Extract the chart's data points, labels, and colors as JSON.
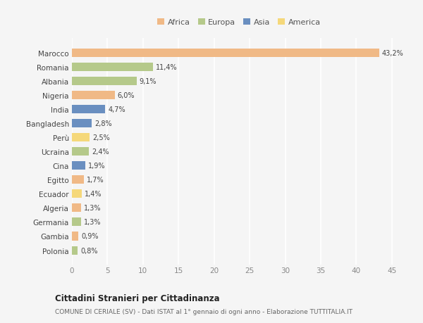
{
  "countries": [
    "Marocco",
    "Romania",
    "Albania",
    "Nigeria",
    "India",
    "Bangladesh",
    "Perù",
    "Ucraina",
    "Cina",
    "Egitto",
    "Ecuador",
    "Algeria",
    "Germania",
    "Gambia",
    "Polonia"
  ],
  "values": [
    43.2,
    11.4,
    9.1,
    6.0,
    4.7,
    2.8,
    2.5,
    2.4,
    1.9,
    1.7,
    1.4,
    1.3,
    1.3,
    0.9,
    0.8
  ],
  "continents": [
    "Africa",
    "Europa",
    "Europa",
    "Africa",
    "Asia",
    "Asia",
    "America",
    "Europa",
    "Asia",
    "Africa",
    "America",
    "Africa",
    "Europa",
    "Africa",
    "Europa"
  ],
  "colors": {
    "Africa": "#F0B986",
    "Europa": "#B5C98A",
    "Asia": "#6A8FC0",
    "America": "#F5D87A"
  },
  "legend_order": [
    "Africa",
    "Europa",
    "Asia",
    "America"
  ],
  "title": "Cittadini Stranieri per Cittadinanza",
  "subtitle": "COMUNE DI CERIALE (SV) - Dati ISTAT al 1° gennaio di ogni anno - Elaborazione TUTTITALIA.IT",
  "xlim": [
    0,
    47
  ],
  "xticks": [
    0,
    5,
    10,
    15,
    20,
    25,
    30,
    35,
    40,
    45
  ],
  "bg_color": "#f5f5f5",
  "bar_height": 0.6
}
